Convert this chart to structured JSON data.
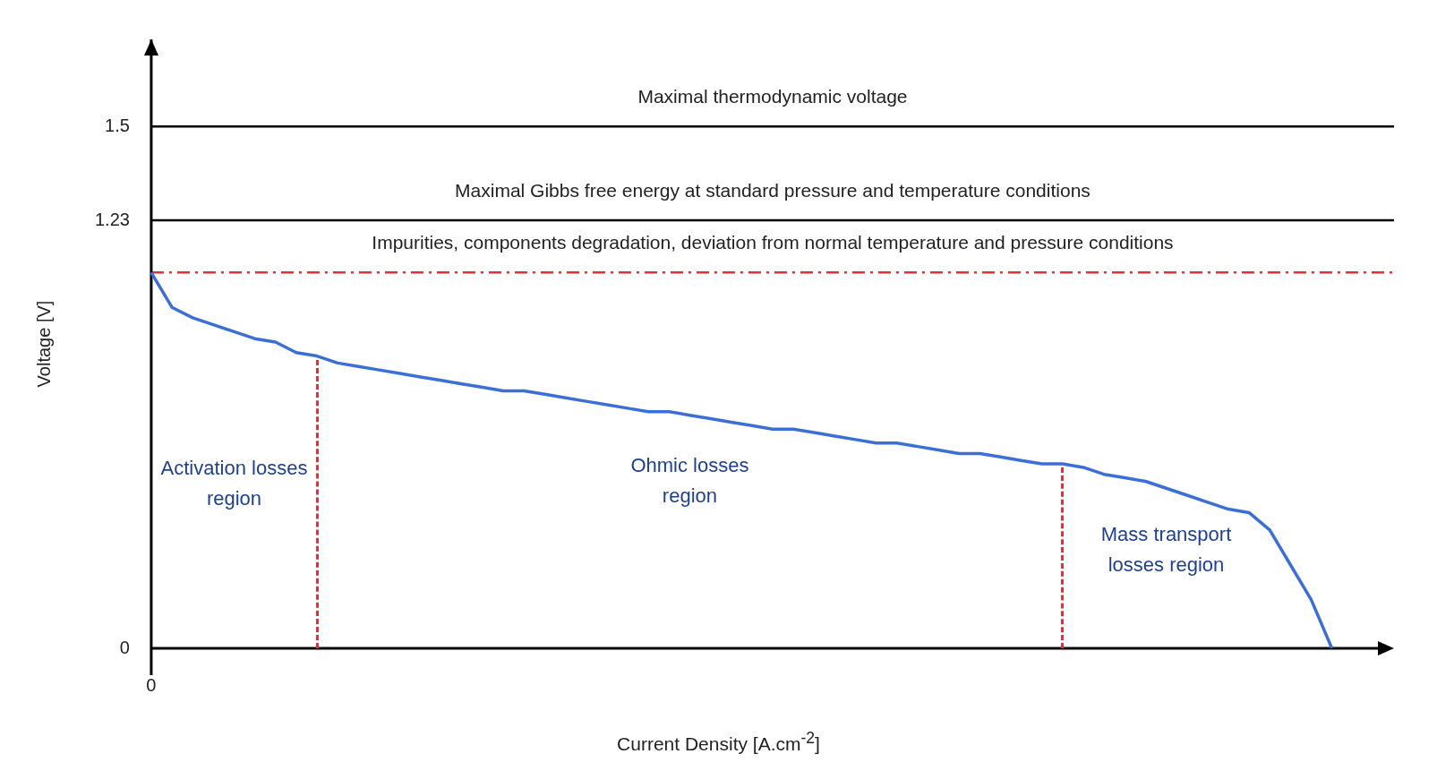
{
  "chart_data": {
    "type": "line",
    "xlabel": "Current Density [A.cm$^{-2}$]",
    "ylabel": "Voltage [V]",
    "categories": [
      "0",
      null,
      null,
      null,
      null,
      null,
      null,
      null,
      null,
      null,
      null,
      null,
      null,
      null,
      null,
      null,
      null,
      null,
      null,
      null,
      null,
      null,
      null,
      null,
      null,
      null,
      null,
      null,
      null,
      null,
      null,
      null,
      null,
      null,
      null,
      null,
      null,
      null,
      null,
      null,
      null,
      null,
      null,
      null,
      null,
      null,
      null,
      null,
      null,
      null,
      null,
      null,
      null,
      null,
      null,
      null,
      null,
      null,
      null,
      null,
      null
    ],
    "series": [
      {
        "color": "#3b6fd6",
        "values": [
          1.08,
          0.98,
          0.95,
          0.93,
          0.91,
          0.89,
          0.88,
          0.85,
          0.84,
          0.82,
          0.81,
          0.8,
          0.79,
          0.78,
          0.77,
          0.76,
          0.75,
          0.74,
          0.74,
          0.73,
          0.72,
          0.71,
          0.7,
          0.69,
          0.68,
          0.68,
          0.67,
          0.66,
          0.65,
          0.64,
          0.63,
          0.63,
          0.62,
          0.61,
          0.6,
          0.59,
          0.59,
          0.58,
          0.57,
          0.56,
          0.56,
          0.55,
          0.54,
          0.53,
          0.53,
          0.52,
          0.5,
          0.49,
          0.48,
          0.46,
          0.44,
          0.42,
          0.4,
          0.39,
          0.34,
          0.24,
          0.14,
          0,
          null,
          null,
          null
        ]
      }
    ],
    "ylim": [
      0,
      1.75
    ],
    "yticks": [
      0,
      1.23,
      1.5
    ],
    "grid": false,
    "legend": false,
    "marker": "none",
    "ref_lines": [
      {
        "axis": "y",
        "value": 1.5,
        "label": "Maximal thermodynamic voltage",
        "color": "#000000"
      },
      {
        "axis": "y",
        "value": 1.23,
        "label": "Maximal Gibbs free energy at standard pressure and temperature conditions",
        "color": "#000000"
      },
      {
        "axis": "y",
        "value": 1.08,
        "label": "Impurities, components degradation, deviation from normal temperature and pressure conditions",
        "color": "#e0303a",
        "line_style": "dashed"
      }
    ],
    "annotations": [
      "Activation losses region",
      "Ohmic losses region",
      "Mass transport losses region"
    ]
  }
}
